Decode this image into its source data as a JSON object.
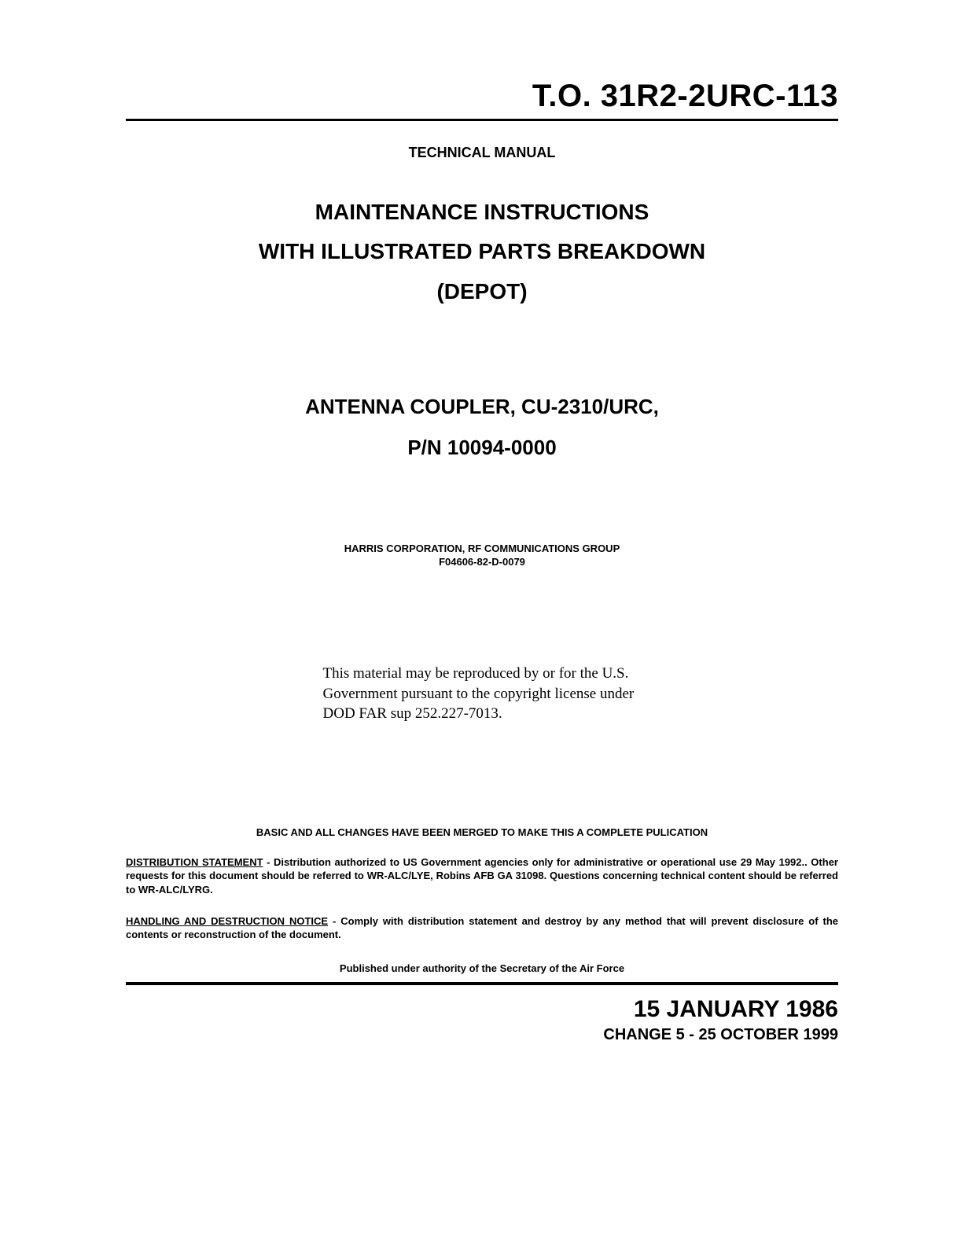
{
  "doc_number": "T.O.  31R2-2URC-113",
  "label_tech": "TECHNICAL MANUAL",
  "title": {
    "line1": "MAINTENANCE INSTRUCTIONS",
    "line2": "WITH ILLUSTRATED PARTS BREAKDOWN",
    "line3": "(DEPOT)"
  },
  "equipment": {
    "line1": "ANTENNA COUPLER, CU-2310/URC,",
    "line2": "P/N 10094-0000"
  },
  "corp": {
    "line1": "HARRIS CORPORATION, RF COMMUNICATIONS GROUP",
    "line2": "F04606-82-D-0079"
  },
  "copyright": "This material may be reproduced by or for the U.S. Government pursuant to the copyright license under DOD FAR sup 252.227-7013.",
  "merge_line": "BASIC AND ALL CHANGES HAVE BEEN MERGED TO MAKE THIS A COMPLETE PULICATION",
  "distribution": {
    "label": "DISTRIBUTION STATEMENT",
    "text": "  -  Distribution authorized to US Government agencies only for administrative or operational use 29 May 1992..  Other requests for this document should be referred to WR-ALC/LYE, Robins AFB GA  31098.  Questions concerning technical content should be referred to WR-ALC/LYRG."
  },
  "handling": {
    "label": "HANDLING AND DESTRUCTION NOTICE",
    "text": "  -  Comply with distribution statement and destroy by any method that will prevent disclosure of the contents or reconstruction of the document."
  },
  "authority": "Published under authority of the Secretary of the Air Force",
  "dates": {
    "main": "15 JANUARY 1986",
    "change": "CHANGE 5  -  25 OCTOBER 1999"
  },
  "colors": {
    "text": "#000000",
    "background": "#ffffff",
    "rule": "#000000"
  },
  "fontsizes_pt": {
    "doc_number": 40,
    "label_tech": 18,
    "title_large": 28,
    "equip": 26,
    "corp": 13,
    "copyright": 19,
    "merge": 13,
    "dist": 13,
    "authority": 13,
    "date_main": 30,
    "date_change": 20
  }
}
